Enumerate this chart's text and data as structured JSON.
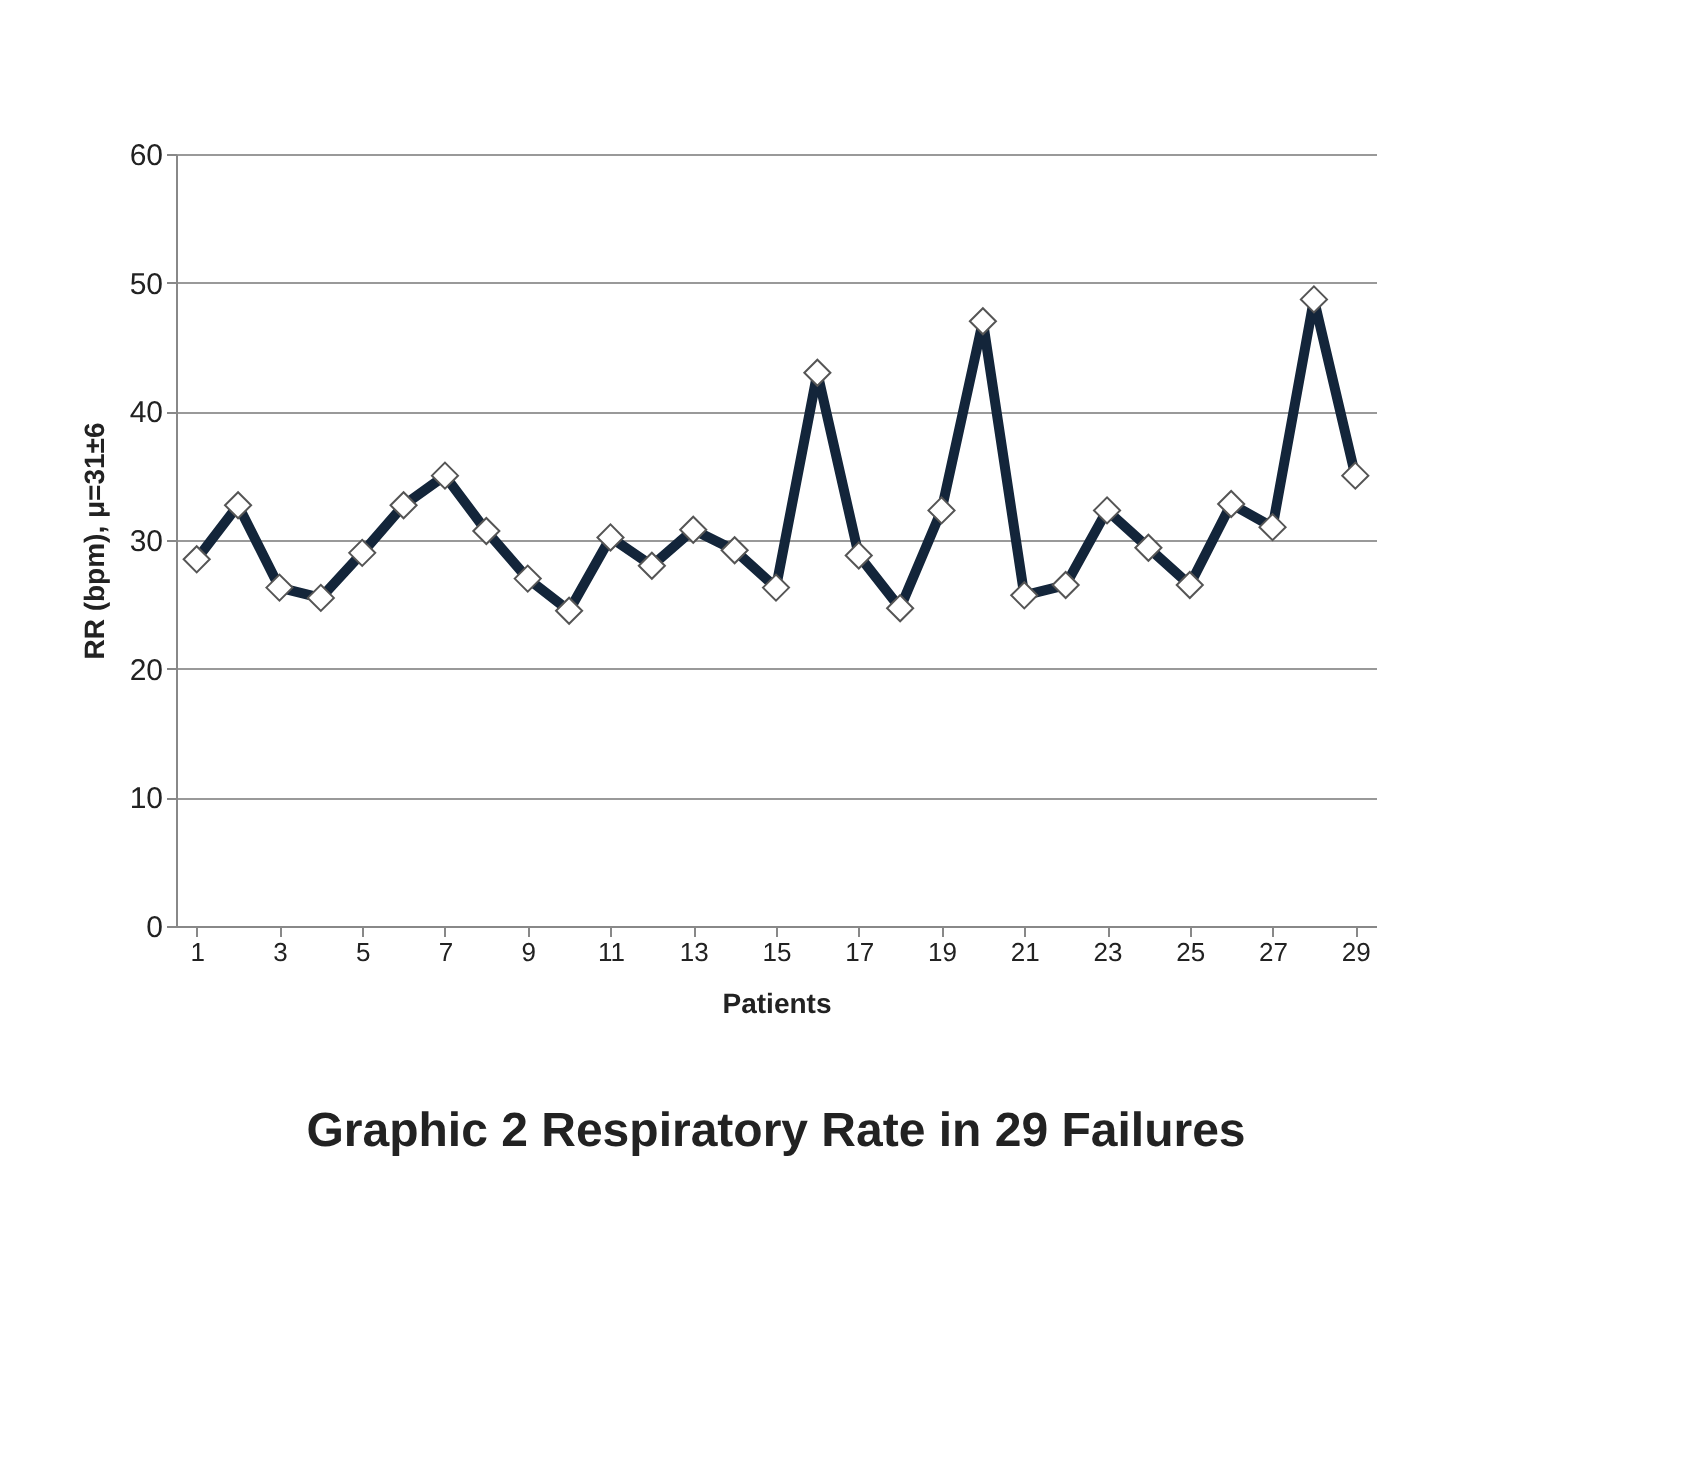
{
  "chart_data": {
    "type": "line",
    "title": "Graphic 2 Respiratory Rate in 29 Failures",
    "xlabel": "Patients",
    "ylabel": "RR (bpm), μ=31±6",
    "x": [
      1,
      2,
      3,
      4,
      5,
      6,
      7,
      8,
      9,
      10,
      11,
      12,
      13,
      14,
      15,
      16,
      17,
      18,
      19,
      20,
      21,
      22,
      23,
      24,
      25,
      26,
      27,
      28,
      29
    ],
    "series": [
      {
        "color": "#13253a",
        "values": [
          28.5,
          32.7,
          26.3,
          25.5,
          29,
          32.7,
          35,
          30.7,
          27,
          24.5,
          30.2,
          28,
          30.8,
          29.2,
          26.3,
          43,
          28.8,
          24.7,
          32.3,
          47,
          25.7,
          26.5,
          32.3,
          29.4,
          26.5,
          32.8,
          31,
          48.7,
          35
        ]
      }
    ],
    "xlim": [
      0.5,
      29.5
    ],
    "xticks": [
      1,
      3,
      5,
      7,
      9,
      11,
      13,
      15,
      17,
      19,
      21,
      23,
      25,
      27,
      29
    ],
    "ylim": [
      0,
      60
    ],
    "yticks": [
      0,
      10,
      20,
      30,
      40,
      50,
      60
    ],
    "grid": "y",
    "marker": "diamond",
    "line_style": "solid"
  }
}
